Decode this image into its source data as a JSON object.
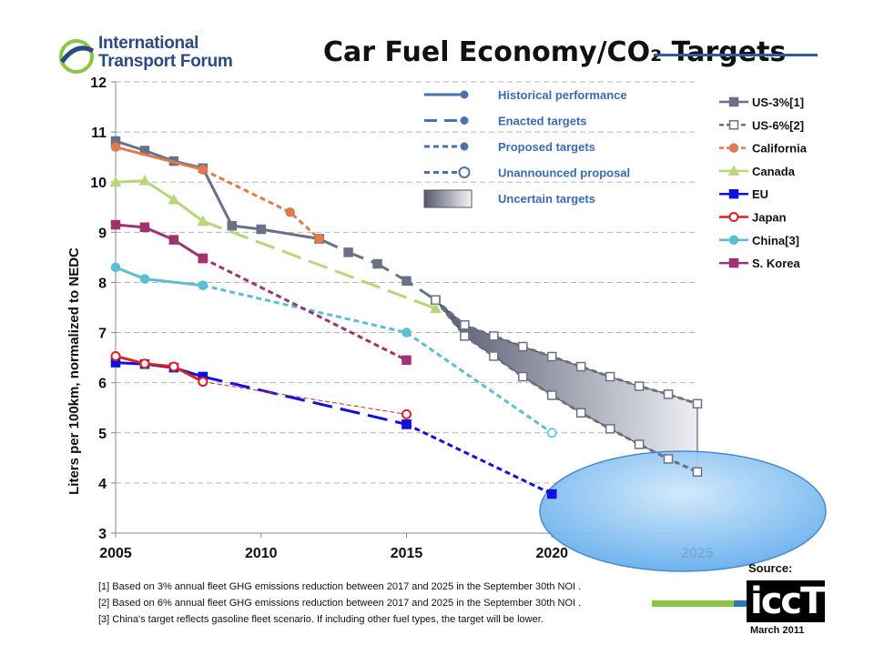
{
  "page": {
    "title": "Car Fuel Economy/CO₂ Targets",
    "logo": {
      "line1": "International",
      "line2": "Transport Forum"
    },
    "notes": [
      "[1] Based on 3% annual fleet GHG emissions reduction between 2017 and 2025  in the September 30th NOI .",
      "[2] Based on 6% annual fleet GHG emissions reduction between 2017 and 2025  in the September 30th NOI .",
      "[3] China's target reflects gasoline fleet scenario. If including other fuel types, the target will be lower."
    ],
    "source_label": "Source:",
    "source_logo": "iccT",
    "date": "March 2011"
  },
  "chart_data": {
    "type": "line",
    "title": "Car Fuel Economy/CO₂ Targets",
    "xlabel": "",
    "ylabel": "Liters per 100km, normalized to NEDC",
    "xlim": [
      2005,
      2025
    ],
    "ylim": [
      3,
      12
    ],
    "xticks": [
      2005,
      2010,
      2015,
      2020,
      2025
    ],
    "yticks": [
      3,
      4,
      5,
      6,
      7,
      8,
      9,
      10,
      11,
      12
    ],
    "grid": "horizontal dashed",
    "style_legend": [
      {
        "label": "Historical performance",
        "style": "solid"
      },
      {
        "label": "Enacted targets",
        "style": "long-dash"
      },
      {
        "label": "Proposed targets",
        "style": "short-dash"
      },
      {
        "label": "Unannounced proposal",
        "style": "short-dash-open-marker"
      },
      {
        "label": "Uncertain targets",
        "style": "gradient-box"
      }
    ],
    "series": [
      {
        "name": "US-3%[1]",
        "color": "#6b7185",
        "marker": "square",
        "segments": [
          {
            "style": "solid",
            "points": [
              [
                2005,
                10.82
              ],
              [
                2006,
                10.63
              ],
              [
                2007,
                10.42
              ],
              [
                2008,
                10.28
              ],
              [
                2009,
                9.13
              ],
              [
                2010,
                9.06
              ],
              [
                2012,
                8.87
              ]
            ]
          },
          {
            "style": "long-dash",
            "points": [
              [
                2012,
                8.87
              ],
              [
                2013,
                8.6
              ],
              [
                2014,
                8.37
              ],
              [
                2015,
                8.03
              ],
              [
                2016,
                7.65
              ]
            ]
          },
          {
            "style": "short-dash",
            "open": true,
            "points": [
              [
                2016,
                7.65
              ],
              [
                2017,
                7.15
              ],
              [
                2018,
                6.93
              ],
              [
                2019,
                6.72
              ],
              [
                2020,
                6.52
              ],
              [
                2021,
                6.32
              ],
              [
                2022,
                6.12
              ],
              [
                2023,
                5.93
              ],
              [
                2024,
                5.77
              ],
              [
                2025,
                5.58
              ]
            ]
          }
        ]
      },
      {
        "name": "US-6%[2]",
        "color": "#6b7185",
        "marker": "square",
        "segments": [
          {
            "style": "short-dash",
            "open": true,
            "points": [
              [
                2016,
                7.65
              ],
              [
                2017,
                6.93
              ],
              [
                2018,
                6.53
              ],
              [
                2019,
                6.12
              ],
              [
                2020,
                5.75
              ],
              [
                2021,
                5.4
              ],
              [
                2022,
                5.08
              ],
              [
                2023,
                4.77
              ],
              [
                2024,
                4.48
              ],
              [
                2025,
                4.22
              ]
            ]
          }
        ]
      },
      {
        "name": "California",
        "color": "#e07a4f",
        "marker": "circle",
        "segments": [
          {
            "style": "solid",
            "points": [
              [
                2005,
                10.7
              ],
              [
                2008,
                10.25
              ]
            ]
          },
          {
            "style": "short-dash",
            "points": [
              [
                2008,
                10.25
              ],
              [
                2011,
                9.4
              ],
              [
                2012,
                8.87
              ]
            ]
          }
        ]
      },
      {
        "name": "Canada",
        "color": "#b8d67a",
        "marker": "triangle",
        "segments": [
          {
            "style": "solid",
            "points": [
              [
                2005,
                10.0
              ],
              [
                2006,
                10.03
              ],
              [
                2007,
                9.65
              ],
              [
                2008,
                9.22
              ]
            ]
          },
          {
            "style": "long-dash",
            "points": [
              [
                2008,
                9.22
              ],
              [
                2016,
                7.48
              ]
            ]
          }
        ]
      },
      {
        "name": "EU",
        "color": "#1111dd",
        "marker": "square",
        "segments": [
          {
            "style": "solid",
            "points": [
              [
                2005,
                6.4
              ],
              [
                2006,
                6.37
              ],
              [
                2007,
                6.3
              ],
              [
                2008,
                6.12
              ]
            ]
          },
          {
            "style": "long-dash",
            "points": [
              [
                2008,
                6.12
              ],
              [
                2015,
                5.17
              ]
            ]
          },
          {
            "style": "short-dash",
            "points": [
              [
                2015,
                5.17
              ],
              [
                2020,
                3.78
              ]
            ]
          }
        ]
      },
      {
        "name": "Japan",
        "color": "#dd2222",
        "marker": "circle-open",
        "segments": [
          {
            "style": "solid",
            "points": [
              [
                2005,
                6.53
              ],
              [
                2006,
                6.38
              ],
              [
                2007,
                6.32
              ],
              [
                2008,
                6.02
              ]
            ]
          },
          {
            "style": "thin-dash",
            "points": [
              [
                2008,
                6.02
              ],
              [
                2015,
                5.37
              ]
            ]
          }
        ]
      },
      {
        "name": "China[3]",
        "color": "#5bbfd1",
        "marker": "circle",
        "segments": [
          {
            "style": "solid",
            "points": [
              [
                2005,
                8.3
              ],
              [
                2006,
                8.07
              ],
              [
                2008,
                7.94
              ]
            ]
          },
          {
            "style": "short-dash",
            "points": [
              [
                2008,
                7.94
              ],
              [
                2015,
                7.0
              ],
              [
                2020,
                5.0
              ]
            ]
          }
        ]
      },
      {
        "name": "S. Korea",
        "color": "#9e3370",
        "marker": "square",
        "segments": [
          {
            "style": "solid",
            "points": [
              [
                2005,
                9.15
              ],
              [
                2006,
                9.1
              ],
              [
                2007,
                8.85
              ],
              [
                2008,
                8.48
              ]
            ]
          },
          {
            "style": "short-dash",
            "points": [
              [
                2008,
                8.48
              ],
              [
                2015,
                6.45
              ]
            ]
          }
        ]
      }
    ]
  }
}
